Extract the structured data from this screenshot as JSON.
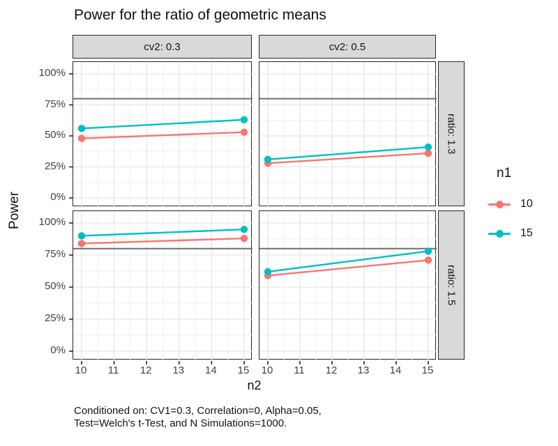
{
  "title": "Power for the ratio of geometric means",
  "facets": {
    "col_labels": [
      "cv2: 0.3",
      "cv2: 0.5"
    ],
    "row_labels": [
      "ratio: 1.3",
      "ratio: 1.5"
    ]
  },
  "axes": {
    "x_title": "n2",
    "y_title": "Power",
    "x_tick_labels": [
      "10",
      "11",
      "12",
      "13",
      "14",
      "15"
    ],
    "y_tick_labels": [
      "100%",
      "75%",
      "50%",
      "25%",
      "0%"
    ]
  },
  "legend": {
    "title": "n1",
    "items": [
      {
        "label": "10",
        "color": "#F8766D"
      },
      {
        "label": "15",
        "color": "#00BFC4"
      }
    ]
  },
  "caption": {
    "line1": "Conditioned on: CV1=0.3, Correlation=0, Alpha=0.05,",
    "line2": "Test=Welch's t-Test, and N Simulations=1000."
  },
  "colors": {
    "strip_background": "#D9D9D9",
    "panel_border": "#262626",
    "grid_major": "#E6E6E6",
    "grid_minor": "#F1F1F1",
    "reference_line": "#6E6E6E",
    "axis_text": "#424242",
    "series_10": "#F8766D",
    "series_15": "#00BFC4"
  },
  "chart_data": {
    "type": "line",
    "title": "Power for the ratio of geometric means",
    "xlabel": "n2",
    "ylabel": "Power",
    "x": [
      10,
      15
    ],
    "x_range": [
      10,
      15
    ],
    "x_major_ticks": [
      10,
      11,
      12,
      13,
      14,
      15
    ],
    "y_range_pct": [
      0,
      100
    ],
    "y_major_ticks_pct": [
      0,
      25,
      50,
      75,
      100
    ],
    "reference_line_pct": 80,
    "grid": true,
    "legend_position": "right",
    "legend_title": "n1",
    "panels": [
      {
        "facet_row": "ratio: 1.3",
        "facet_col": "cv2: 0.3",
        "series": [
          {
            "name": "10",
            "values_pct": [
              48,
              53
            ]
          },
          {
            "name": "15",
            "values_pct": [
              56,
              63
            ]
          }
        ]
      },
      {
        "facet_row": "ratio: 1.3",
        "facet_col": "cv2: 0.5",
        "series": [
          {
            "name": "10",
            "values_pct": [
              28,
              36
            ]
          },
          {
            "name": "15",
            "values_pct": [
              31,
              41
            ]
          }
        ]
      },
      {
        "facet_row": "ratio: 1.5",
        "facet_col": "cv2: 0.3",
        "series": [
          {
            "name": "10",
            "values_pct": [
              84,
              88
            ]
          },
          {
            "name": "15",
            "values_pct": [
              90,
              95
            ]
          }
        ]
      },
      {
        "facet_row": "ratio: 1.5",
        "facet_col": "cv2: 0.5",
        "series": [
          {
            "name": "10",
            "values_pct": [
              59,
              71
            ]
          },
          {
            "name": "15",
            "values_pct": [
              62,
              78
            ]
          }
        ]
      }
    ]
  }
}
